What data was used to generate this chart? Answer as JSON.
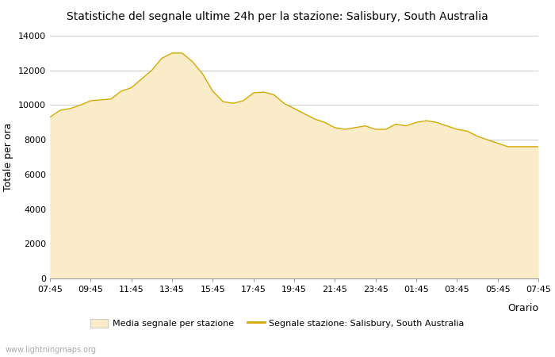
{
  "title": "Statistiche del segnale ultime 24h per la stazione: Salisbury, South Australia",
  "xlabel": "Orario",
  "ylabel": "Totale per ora",
  "fill_color": "#FAECC8",
  "line_color": "#D4A800",
  "background_color": "#ffffff",
  "grid_color": "#cccccc",
  "ylim": [
    0,
    14000
  ],
  "yticks": [
    0,
    2000,
    4000,
    6000,
    8000,
    10000,
    12000,
    14000
  ],
  "xtick_labels": [
    "07:45",
    "09:45",
    "11:45",
    "13:45",
    "15:45",
    "17:45",
    "19:45",
    "21:45",
    "23:45",
    "01:45",
    "03:45",
    "05:45",
    "07:45"
  ],
  "watermark": "www.lightningmaps.org",
  "legend_fill_label": "Media segnale per stazione",
  "legend_line_label": "Segnale stazione: Salisbury, South Australia",
  "y_values": [
    9300,
    9700,
    9800,
    10000,
    10250,
    10300,
    10350,
    10800,
    11000,
    11500,
    12000,
    12700,
    13000,
    13000,
    12500,
    11800,
    10800,
    10200,
    10100,
    10250,
    10700,
    10750,
    10600,
    10100,
    9800,
    9500,
    9200,
    9000,
    8700,
    8600,
    8700,
    8800,
    8600,
    8600,
    8900,
    8800,
    9000,
    9100,
    9000,
    8800,
    8600,
    8500,
    8200,
    8000,
    7800,
    7600,
    7600,
    7600,
    7600
  ]
}
